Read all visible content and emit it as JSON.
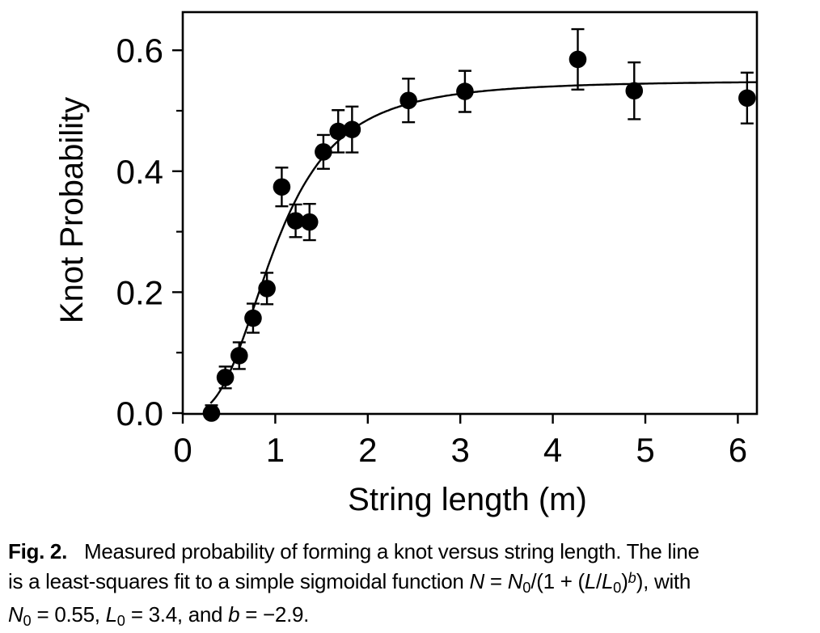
{
  "page": {
    "background": "#ffffff",
    "ink_color": "#000000"
  },
  "chart_data": {
    "type": "scatter",
    "title": "",
    "xlabel": "String length (m)",
    "ylabel": "Knot Probability",
    "xlim": [
      0,
      6.2
    ],
    "ylim": [
      0,
      0.66
    ],
    "x_ticks": [
      0,
      1,
      2,
      3,
      4,
      5,
      6
    ],
    "x_tick_labels": [
      "0",
      "1",
      "2",
      "3",
      "4",
      "5",
      "6"
    ],
    "y_ticks": [
      0,
      0.2,
      0.4,
      0.6
    ],
    "y_tick_labels": [
      "0.0",
      "0.2",
      "0.4",
      "0.6"
    ],
    "y_minor_ticks": [
      0.1,
      0.3,
      0.5
    ],
    "grid": false,
    "legend": "none",
    "marker": {
      "shape": "filled-circle",
      "color": "#000000",
      "error_bars": "vertical-with-caps"
    },
    "points": [
      {
        "x": 0.31,
        "y": 0.0,
        "err": 0.013
      },
      {
        "x": 0.46,
        "y": 0.059,
        "err": 0.018
      },
      {
        "x": 0.61,
        "y": 0.095,
        "err": 0.022
      },
      {
        "x": 0.76,
        "y": 0.157,
        "err": 0.024
      },
      {
        "x": 0.91,
        "y": 0.206,
        "err": 0.026
      },
      {
        "x": 1.07,
        "y": 0.374,
        "err": 0.032
      },
      {
        "x": 1.22,
        "y": 0.318,
        "err": 0.027
      },
      {
        "x": 1.37,
        "y": 0.316,
        "err": 0.03
      },
      {
        "x": 1.52,
        "y": 0.432,
        "err": 0.028
      },
      {
        "x": 1.68,
        "y": 0.466,
        "err": 0.035
      },
      {
        "x": 1.83,
        "y": 0.469,
        "err": 0.038
      },
      {
        "x": 2.44,
        "y": 0.517,
        "err": 0.036
      },
      {
        "x": 3.05,
        "y": 0.532,
        "err": 0.034
      },
      {
        "x": 4.27,
        "y": 0.585,
        "err": 0.05
      },
      {
        "x": 4.88,
        "y": 0.533,
        "err": 0.047
      },
      {
        "x": 6.1,
        "y": 0.521,
        "err": 0.042
      }
    ],
    "fit": {
      "description": "least-squares fit to a simple sigmoidal function",
      "formula": "N = N0/(1 + (L/L0)^b)",
      "N0": 0.55,
      "L0": 3.4,
      "b": -2.9,
      "draw": {
        "N0": 0.55,
        "L0_m": 1.0,
        "b": -2.9,
        "L_start": 0.3,
        "L_end": 6.2
      }
    }
  },
  "figure": {
    "caption_lines": [
      [
        {
          "t": "Fig. 2.",
          "b": 1
        },
        {
          "t": "Measured probability of forming a knot versus string length. The line"
        }
      ],
      [
        {
          "t": "is a least-squares fit to a simple sigmoidal function "
        },
        {
          "t": "N",
          "i": 1
        },
        {
          "t": " = "
        },
        {
          "t": "N",
          "i": 1
        },
        {
          "t": "0",
          "sub": 1
        },
        {
          "t": "/(1 + ("
        },
        {
          "t": "L",
          "i": 1
        },
        {
          "t": "/"
        },
        {
          "t": "L",
          "i": 1
        },
        {
          "t": "0",
          "sub": 1
        },
        {
          "t": ")"
        },
        {
          "t": "b",
          "i": 1,
          "sup": 1
        },
        {
          "t": "), with"
        }
      ],
      [
        {
          "t": "N",
          "i": 1
        },
        {
          "t": "0",
          "sub": 1
        },
        {
          "t": " = 0.55, "
        },
        {
          "t": "L",
          "i": 1
        },
        {
          "t": "0",
          "sub": 1
        },
        {
          "t": " = 3.4, and "
        },
        {
          "t": "b",
          "i": 1
        },
        {
          "t": " = −2.9."
        }
      ]
    ]
  }
}
